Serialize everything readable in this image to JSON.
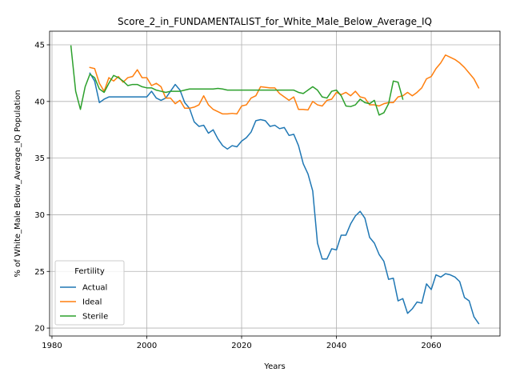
{
  "chart_data": {
    "type": "line",
    "title": "Score_2_in_FUNDAMENTALIST_for_White_Male_Below_Average_IQ",
    "xlabel": "Years",
    "ylabel": "% of White_Male Below_Average_IQ Population",
    "xlim": [
      1979.5,
      2074.5
    ],
    "ylim": [
      19.3,
      46.2
    ],
    "xticks": [
      1980,
      2000,
      2020,
      2040,
      2060
    ],
    "yticks": [
      20,
      25,
      30,
      35,
      40,
      45
    ],
    "grid": true,
    "legend": {
      "title": "Fertility",
      "placement": "lower-left"
    },
    "series": [
      {
        "name": "Actual",
        "color": "#1f77b4",
        "x": [
          1988,
          1989,
          1990,
          1991,
          1992,
          1993,
          1994,
          1995,
          1996,
          1997,
          1998,
          1999,
          2000,
          2001,
          2002,
          2003,
          2004,
          2005,
          2006,
          2007,
          2008,
          2009,
          2010,
          2011,
          2012,
          2013,
          2014,
          2015,
          2016,
          2017,
          2018,
          2019,
          2020,
          2021,
          2022,
          2023,
          2024,
          2025,
          2026,
          2027,
          2028,
          2029,
          2030,
          2031,
          2032,
          2033,
          2034,
          2035,
          2036,
          2037,
          2038,
          2039,
          2040,
          2041,
          2042,
          2043,
          2044,
          2045,
          2046,
          2047,
          2048,
          2049,
          2050,
          2051,
          2052,
          2053,
          2054,
          2055,
          2056,
          2057,
          2058,
          2059,
          2060,
          2061,
          2062,
          2063,
          2064,
          2065,
          2066,
          2067,
          2068,
          2069,
          2070
        ],
        "values": [
          42.5,
          41.8,
          39.9,
          40.2,
          40.4,
          40.4,
          40.4,
          40.4,
          40.4,
          40.4,
          40.4,
          40.4,
          40.4,
          40.9,
          40.3,
          40.1,
          40.3,
          40.9,
          41.5,
          41.0,
          39.9,
          39.4,
          38.2,
          37.8,
          37.9,
          37.2,
          37.5,
          36.7,
          36.1,
          35.8,
          36.1,
          36.0,
          36.5,
          36.8,
          37.3,
          38.3,
          38.4,
          38.3,
          37.8,
          37.9,
          37.6,
          37.7,
          37.0,
          37.1,
          36.1,
          34.5,
          33.6,
          32.1,
          27.5,
          26.1,
          26.1,
          27.0,
          26.9,
          28.2,
          28.2,
          29.2,
          29.9,
          30.3,
          29.7,
          28.0,
          27.5,
          26.5,
          25.9,
          24.3,
          24.4,
          22.4,
          22.6,
          21.3,
          21.7,
          22.3,
          22.2,
          23.9,
          23.4,
          24.7,
          24.5,
          24.8,
          24.7,
          24.5,
          24.1,
          22.7,
          22.4,
          21.0,
          20.4
        ]
      },
      {
        "name": "Ideal",
        "color": "#ff7f0e",
        "x": [
          1988,
          1989,
          1990,
          1991,
          1992,
          1993,
          1994,
          1995,
          1996,
          1997,
          1998,
          1999,
          2000,
          2001,
          2002,
          2003,
          2004,
          2005,
          2006,
          2007,
          2008,
          2009,
          2010,
          2011,
          2012,
          2013,
          2014,
          2015,
          2016,
          2017,
          2018,
          2019,
          2020,
          2021,
          2022,
          2023,
          2024,
          2025,
          2026,
          2027,
          2028,
          2029,
          2030,
          2031,
          2032,
          2033,
          2034,
          2035,
          2036,
          2037,
          2038,
          2039,
          2040,
          2041,
          2042,
          2043,
          2044,
          2045,
          2046,
          2047,
          2048,
          2049,
          2050,
          2051,
          2052,
          2053,
          2054,
          2055,
          2056,
          2057,
          2058,
          2059,
          2060,
          2061,
          2062,
          2063,
          2064,
          2065,
          2066,
          2067,
          2068,
          2069,
          2070
        ],
        "values": [
          43.0,
          42.9,
          41.6,
          40.9,
          42.1,
          41.8,
          42.2,
          41.7,
          42.1,
          42.2,
          42.8,
          42.1,
          42.1,
          41.4,
          41.6,
          41.3,
          40.3,
          40.3,
          39.8,
          40.1,
          39.4,
          39.4,
          39.5,
          39.7,
          40.5,
          39.7,
          39.3,
          39.1,
          38.9,
          38.9,
          38.95,
          38.9,
          39.6,
          39.7,
          40.3,
          40.5,
          41.3,
          41.25,
          41.2,
          41.2,
          40.7,
          40.4,
          40.1,
          40.4,
          39.3,
          39.3,
          39.25,
          40.0,
          39.7,
          39.6,
          40.1,
          40.2,
          40.8,
          40.6,
          40.8,
          40.5,
          40.9,
          40.4,
          40.3,
          39.7,
          39.7,
          39.6,
          39.8,
          39.9,
          39.9,
          40.4,
          40.5,
          40.8,
          40.5,
          40.8,
          41.2,
          42.0,
          42.2,
          42.9,
          43.4,
          44.1,
          43.9,
          43.7,
          43.4,
          43.0,
          42.5,
          42.0,
          41.2
        ]
      },
      {
        "name": "Sterile",
        "color": "#2ca02c",
        "x": [
          1984,
          1985,
          1986,
          1987,
          1988,
          1989,
          1990,
          1991,
          1992,
          1993,
          1994,
          1995,
          1996,
          1997,
          1998,
          1999,
          2000,
          2001,
          2002,
          2003,
          2004,
          2005,
          2006,
          2007,
          2008,
          2009,
          2010,
          2011,
          2012,
          2013,
          2014,
          2015,
          2016,
          2017,
          2018,
          2019,
          2020,
          2021,
          2022,
          2023,
          2024,
          2025,
          2026,
          2027,
          2028,
          2029,
          2030,
          2031,
          2032,
          2033,
          2034,
          2035,
          2036,
          2037,
          2038,
          2039,
          2040,
          2041,
          2042,
          2043,
          2044,
          2045,
          2046,
          2047,
          2048,
          2049,
          2050,
          2051,
          2052,
          2053,
          2054
        ],
        "values": [
          44.9,
          40.9,
          39.3,
          41.3,
          42.4,
          42.1,
          41.1,
          40.8,
          41.6,
          42.3,
          42.1,
          41.8,
          41.4,
          41.5,
          41.5,
          41.3,
          41.2,
          41.2,
          41.0,
          40.9,
          40.8,
          40.9,
          40.9,
          40.9,
          41.0,
          41.1,
          41.1,
          41.1,
          41.1,
          41.1,
          41.1,
          41.15,
          41.1,
          41.0,
          41.0,
          41.0,
          41.0,
          41.0,
          41.0,
          41.0,
          41.0,
          41.0,
          41.0,
          41.0,
          41.0,
          41.0,
          41.0,
          41.0,
          40.8,
          40.7,
          41.0,
          41.3,
          41.0,
          40.4,
          40.3,
          40.9,
          41.0,
          40.5,
          39.6,
          39.55,
          39.7,
          40.2,
          39.9,
          39.8,
          40.1,
          38.8,
          39.0,
          39.8,
          41.8,
          41.7,
          40.2
        ]
      }
    ]
  }
}
